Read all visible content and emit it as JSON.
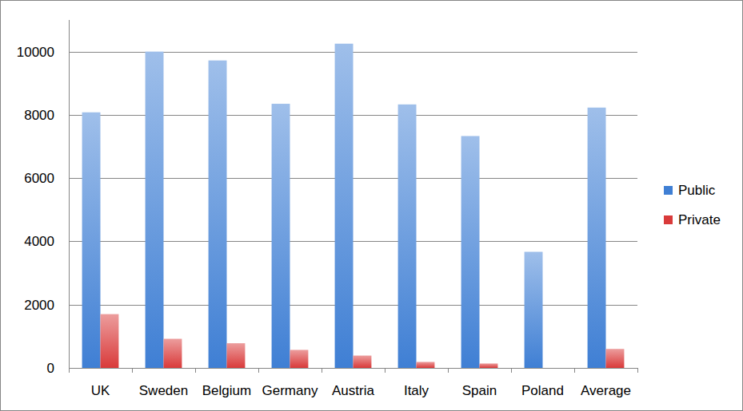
{
  "chart_data": {
    "type": "bar",
    "categories": [
      "UK",
      "Sweden",
      "Belgium",
      "Germany",
      "Austria",
      "Italy",
      "Spain",
      "Poland",
      "Average"
    ],
    "series": [
      {
        "name": "Public",
        "color": "#3f7fd4",
        "values": [
          8080,
          10000,
          9720,
          8350,
          10250,
          8330,
          7330,
          3670,
          8230
        ]
      },
      {
        "name": "Private",
        "color": "#d93a3a",
        "values": [
          1700,
          920,
          780,
          570,
          390,
          190,
          140,
          0,
          600
        ]
      }
    ],
    "ylim": [
      0,
      11000
    ],
    "yticks": [
      0,
      2000,
      4000,
      6000,
      8000,
      10000
    ],
    "grid": true,
    "legend": "right"
  }
}
